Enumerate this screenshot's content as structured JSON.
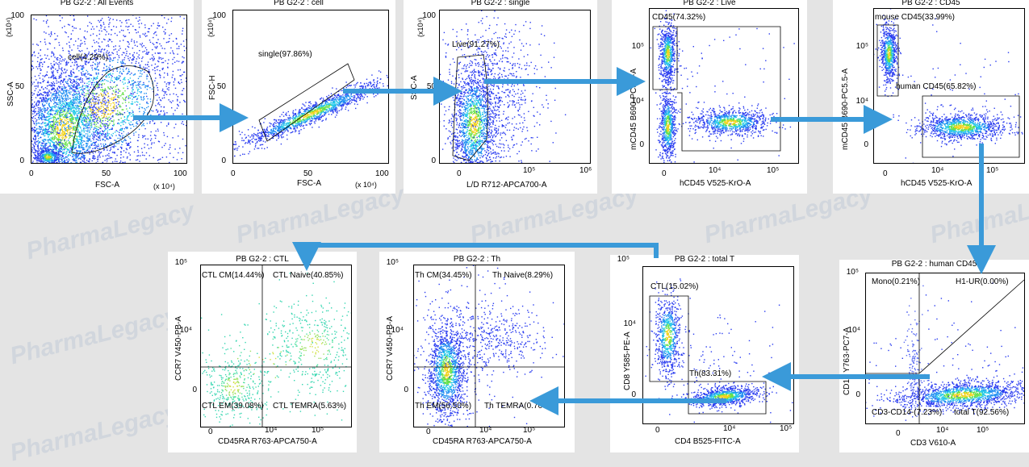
{
  "watermark": "PharmaLegacy",
  "colors": {
    "arrow": "#3a9ad9",
    "dense": "#1f2fd8"
  },
  "chart_data": [
    {
      "type": "scatter",
      "title": "PB G2-2 : All Events",
      "xlabel": "FSC-A",
      "ylabel": "SSC-A",
      "x_ticks": [
        "0",
        "50",
        "100"
      ],
      "y_ticks": [
        "0",
        "50",
        "100"
      ],
      "x_exp": "(x 10⁴)",
      "y_exp": "(x10⁴)",
      "gates": [
        {
          "name": "cell",
          "pct": 4.29,
          "label": "cell(4.29%)"
        }
      ]
    },
    {
      "type": "scatter",
      "title": "PB G2-2 : cell",
      "xlabel": "FSC-A",
      "ylabel": "FSC-H",
      "x_ticks": [
        "0",
        "50",
        "100"
      ],
      "y_ticks": [
        "0",
        "50",
        "100"
      ],
      "x_exp": "(x 10⁴)",
      "y_exp": "(x10⁴)",
      "gates": [
        {
          "name": "single",
          "pct": 97.86,
          "label": "single(97.86%)"
        }
      ]
    },
    {
      "type": "scatter",
      "title": "PB G2-2 : single",
      "xlabel": "L/D R712-APCA700-A",
      "ylabel": "SSC-A",
      "x_ticks": [
        "0",
        "10⁵",
        "10⁶"
      ],
      "y_ticks": [
        "0",
        "50",
        "100"
      ],
      "y_exp": "(x10⁴)",
      "gates": [
        {
          "name": "Live",
          "pct": 91.27,
          "label": "Live(91.27%)"
        }
      ]
    },
    {
      "type": "scatter",
      "title": "PB G2-2 : Live",
      "xlabel": "hCD45 V525-KrO-A",
      "ylabel": "mCD45 B690-PC5.5-A",
      "x_ticks": [
        "0",
        "10⁴",
        "10⁵"
      ],
      "y_ticks": [
        "0",
        "10⁴",
        "10⁵"
      ],
      "gates": [
        {
          "name": "CD45",
          "pct": 74.32,
          "label": "CD45(74.32%)"
        }
      ]
    },
    {
      "type": "scatter",
      "title": "PB G2-2 : CD45",
      "xlabel": "hCD45 V525-KrO-A",
      "ylabel": "mCD45 B690-PC5.5-A",
      "x_ticks": [
        "0",
        "10⁴",
        "10⁵"
      ],
      "y_ticks": [
        "0",
        "10⁴",
        "10⁵"
      ],
      "gates": [
        {
          "name": "mouse CD45",
          "pct": 33.99,
          "label": "mouse CD45(33.99%)"
        },
        {
          "name": "human CD45",
          "pct": 65.82,
          "label": "human CD45(65.82%)"
        }
      ]
    },
    {
      "type": "scatter",
      "title": "PB G2-2 : human CD45",
      "xlabel": "CD3 V610-A",
      "ylabel": "CD14 Y763-PC7-A",
      "x_ticks": [
        "0",
        "10⁴",
        "10⁵"
      ],
      "y_ticks": [
        "0",
        "10⁴",
        "10⁵"
      ],
      "gates": [
        {
          "name": "Mono",
          "pct": 0.21,
          "label": "Mono(0.21%)"
        },
        {
          "name": "H1-UR",
          "pct": 0.0,
          "label": "H1-UR(0.00%)"
        },
        {
          "name": "CD3-CD14-",
          "pct": 7.23,
          "label": "CD3-CD14-(7.23%)"
        },
        {
          "name": "total T",
          "pct": 92.56,
          "label": "total T(92.56%)"
        }
      ]
    },
    {
      "type": "scatter",
      "title": "PB G2-2 : total T",
      "xlabel": "CD4 B525-FITC-A",
      "ylabel": "CD8 Y585-PE-A",
      "x_ticks": [
        "0",
        "10⁴",
        "10⁵"
      ],
      "y_ticks": [
        "0",
        "10⁴",
        "10⁵"
      ],
      "gates": [
        {
          "name": "CTL",
          "pct": 15.02,
          "label": "CTL(15.02%)"
        },
        {
          "name": "Th",
          "pct": 83.31,
          "label": "Th(83.31%)"
        }
      ]
    },
    {
      "type": "scatter",
      "title": "PB G2-2 : Th",
      "xlabel": "CD45RA R763-APCA750-A",
      "ylabel": "CCR7 V450-PB-A",
      "x_ticks": [
        "0",
        "10⁴",
        "10⁵"
      ],
      "y_ticks": [
        "0",
        "10⁴",
        "10⁵"
      ],
      "gates": [
        {
          "name": "Th CM",
          "pct": 34.45,
          "label": "Th CM(34.45%)"
        },
        {
          "name": "Th Naive",
          "pct": 8.29,
          "label": "Th Naive(8.29%)"
        },
        {
          "name": "Th EM",
          "pct": 56.5,
          "label": "Th EM(56.50%)"
        },
        {
          "name": "Th TEMRA",
          "pct": 0.76,
          "label": "Th TEMRA(0.76%)"
        }
      ]
    },
    {
      "type": "scatter",
      "title": "PB G2-2 : CTL",
      "xlabel": "CD45RA R763-APCA750-A",
      "ylabel": "CCR7 V450-PB-A",
      "x_ticks": [
        "0",
        "10⁴",
        "10⁵"
      ],
      "y_ticks": [
        "0",
        "10⁴",
        "10⁵"
      ],
      "gates": [
        {
          "name": "CTL CM",
          "pct": 14.44,
          "label": "CTL CM(14.44%)"
        },
        {
          "name": "CTL Naive",
          "pct": 40.85,
          "label": "CTL Naive(40.85%)"
        },
        {
          "name": "CTL EM",
          "pct": 39.08,
          "label": "CTL EM(39.08%)"
        },
        {
          "name": "CTL TEMRA",
          "pct": 5.63,
          "label": "CTL TEMRA(5.63%)"
        }
      ]
    }
  ]
}
